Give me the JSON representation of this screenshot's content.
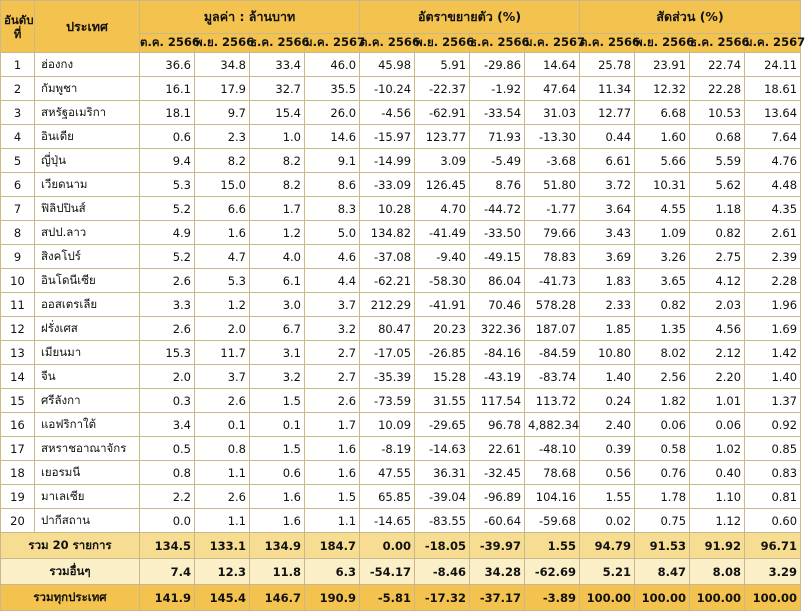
{
  "headers": {
    "rank": "อันดับที่",
    "country": "ประเทศ",
    "groups": [
      "มูลค่า : ล้านบาท",
      "อัตราขยายตัว (%)",
      "สัดส่วน (%)"
    ],
    "months": [
      "ต.ค. 2566",
      "พ.ย. 2566",
      "ธ.ค. 2566",
      "ม.ค. 2567"
    ]
  },
  "rows": [
    {
      "rank": "1",
      "country": "ฮ่องกง",
      "value": [
        "36.6",
        "34.8",
        "33.4",
        "46.0"
      ],
      "growth": [
        "45.98",
        "5.91",
        "-29.86",
        "14.64"
      ],
      "share": [
        "25.78",
        "23.91",
        "22.74",
        "24.11"
      ]
    },
    {
      "rank": "2",
      "country": "กัมพูชา",
      "value": [
        "16.1",
        "17.9",
        "32.7",
        "35.5"
      ],
      "growth": [
        "-10.24",
        "-22.37",
        "-1.92",
        "47.64"
      ],
      "share": [
        "11.34",
        "12.32",
        "22.28",
        "18.61"
      ]
    },
    {
      "rank": "3",
      "country": "สหรัฐอเมริกา",
      "value": [
        "18.1",
        "9.7",
        "15.4",
        "26.0"
      ],
      "growth": [
        "-4.56",
        "-62.91",
        "-33.54",
        "31.03"
      ],
      "share": [
        "12.77",
        "6.68",
        "10.53",
        "13.64"
      ]
    },
    {
      "rank": "4",
      "country": "อินเดีย",
      "value": [
        "0.6",
        "2.3",
        "1.0",
        "14.6"
      ],
      "growth": [
        "-15.97",
        "123.77",
        "71.93",
        "-13.30"
      ],
      "share": [
        "0.44",
        "1.60",
        "0.68",
        "7.64"
      ]
    },
    {
      "rank": "5",
      "country": "ญี่ปุ่น",
      "value": [
        "9.4",
        "8.2",
        "8.2",
        "9.1"
      ],
      "growth": [
        "-14.99",
        "3.09",
        "-5.49",
        "-3.68"
      ],
      "share": [
        "6.61",
        "5.66",
        "5.59",
        "4.76"
      ]
    },
    {
      "rank": "6",
      "country": "เวียดนาม",
      "value": [
        "5.3",
        "15.0",
        "8.2",
        "8.6"
      ],
      "growth": [
        "-33.09",
        "126.45",
        "8.76",
        "51.80"
      ],
      "share": [
        "3.72",
        "10.31",
        "5.62",
        "4.48"
      ]
    },
    {
      "rank": "7",
      "country": "ฟิลิปปินส์",
      "value": [
        "5.2",
        "6.6",
        "1.7",
        "8.3"
      ],
      "growth": [
        "10.28",
        "4.70",
        "-44.72",
        "-1.77"
      ],
      "share": [
        "3.64",
        "4.55",
        "1.18",
        "4.35"
      ]
    },
    {
      "rank": "8",
      "country": "สปป.ลาว",
      "value": [
        "4.9",
        "1.6",
        "1.2",
        "5.0"
      ],
      "growth": [
        "134.82",
        "-41.49",
        "-33.50",
        "79.66"
      ],
      "share": [
        "3.43",
        "1.09",
        "0.82",
        "2.61"
      ]
    },
    {
      "rank": "9",
      "country": "สิงคโปร์",
      "value": [
        "5.2",
        "4.7",
        "4.0",
        "4.6"
      ],
      "growth": [
        "-37.08",
        "-9.40",
        "-49.15",
        "78.83"
      ],
      "share": [
        "3.69",
        "3.26",
        "2.75",
        "2.39"
      ]
    },
    {
      "rank": "10",
      "country": "อินโดนีเซีย",
      "value": [
        "2.6",
        "5.3",
        "6.1",
        "4.4"
      ],
      "growth": [
        "-62.21",
        "-58.30",
        "86.04",
        "-41.73"
      ],
      "share": [
        "1.83",
        "3.65",
        "4.12",
        "2.28"
      ]
    },
    {
      "rank": "11",
      "country": "ออสเตรเลีย",
      "value": [
        "3.3",
        "1.2",
        "3.0",
        "3.7"
      ],
      "growth": [
        "212.29",
        "-41.91",
        "70.46",
        "578.28"
      ],
      "share": [
        "2.33",
        "0.82",
        "2.03",
        "1.96"
      ]
    },
    {
      "rank": "12",
      "country": "ฝรั่งเศส",
      "value": [
        "2.6",
        "2.0",
        "6.7",
        "3.2"
      ],
      "growth": [
        "80.47",
        "20.23",
        "322.36",
        "187.07"
      ],
      "share": [
        "1.85",
        "1.35",
        "4.56",
        "1.69"
      ]
    },
    {
      "rank": "13",
      "country": "เมียนมา",
      "value": [
        "15.3",
        "11.7",
        "3.1",
        "2.7"
      ],
      "growth": [
        "-17.05",
        "-26.85",
        "-84.16",
        "-84.59"
      ],
      "share": [
        "10.80",
        "8.02",
        "2.12",
        "1.42"
      ]
    },
    {
      "rank": "14",
      "country": "จีน",
      "value": [
        "2.0",
        "3.7",
        "3.2",
        "2.7"
      ],
      "growth": [
        "-35.39",
        "15.28",
        "-43.19",
        "-83.74"
      ],
      "share": [
        "1.40",
        "2.56",
        "2.20",
        "1.40"
      ]
    },
    {
      "rank": "15",
      "country": "ศรีลังกา",
      "value": [
        "0.3",
        "2.6",
        "1.5",
        "2.6"
      ],
      "growth": [
        "-73.59",
        "31.55",
        "117.54",
        "113.72"
      ],
      "share": [
        "0.24",
        "1.82",
        "1.01",
        "1.37"
      ]
    },
    {
      "rank": "16",
      "country": "แอฟริกาใต้",
      "value": [
        "3.4",
        "0.1",
        "0.1",
        "1.7"
      ],
      "growth": [
        "10.09",
        "-29.65",
        "96.78",
        "4,882.34"
      ],
      "share": [
        "2.40",
        "0.06",
        "0.06",
        "0.92"
      ]
    },
    {
      "rank": "17",
      "country": "สหราชอาณาจักร",
      "value": [
        "0.5",
        "0.8",
        "1.5",
        "1.6"
      ],
      "growth": [
        "-8.19",
        "-14.63",
        "22.61",
        "-48.10"
      ],
      "share": [
        "0.39",
        "0.58",
        "1.02",
        "0.85"
      ]
    },
    {
      "rank": "18",
      "country": "เยอรมนี",
      "value": [
        "0.8",
        "1.1",
        "0.6",
        "1.6"
      ],
      "growth": [
        "47.55",
        "36.31",
        "-32.45",
        "78.68"
      ],
      "share": [
        "0.56",
        "0.76",
        "0.40",
        "0.83"
      ]
    },
    {
      "rank": "19",
      "country": "มาเลเซีย",
      "value": [
        "2.2",
        "2.6",
        "1.6",
        "1.5"
      ],
      "growth": [
        "65.85",
        "-39.04",
        "-96.89",
        "104.16"
      ],
      "share": [
        "1.55",
        "1.78",
        "1.10",
        "0.81"
      ]
    },
    {
      "rank": "20",
      "country": "ปากีสถาน",
      "value": [
        "0.0",
        "1.1",
        "1.6",
        "1.1"
      ],
      "growth": [
        "-14.65",
        "-83.55",
        "-60.64",
        "-59.68"
      ],
      "share": [
        "0.02",
        "0.75",
        "1.12",
        "0.60"
      ]
    }
  ],
  "summary": {
    "top20": {
      "label": "รวม 20 รายการ",
      "value": [
        "134.5",
        "133.1",
        "134.9",
        "184.7"
      ],
      "growth": [
        "0.00",
        "-18.05",
        "-39.97",
        "1.55"
      ],
      "share": [
        "94.79",
        "91.53",
        "91.92",
        "96.71"
      ]
    },
    "others": {
      "label": "รวมอื่นๆ",
      "value": [
        "7.4",
        "12.3",
        "11.8",
        "6.3"
      ],
      "growth": [
        "-54.17",
        "-8.46",
        "34.28",
        "-62.69"
      ],
      "share": [
        "5.21",
        "8.47",
        "8.08",
        "3.29"
      ]
    },
    "total": {
      "label": "รวมทุกประเทศ",
      "value": [
        "141.9",
        "145.4",
        "146.7",
        "190.9"
      ],
      "growth": [
        "-5.81",
        "-17.32",
        "-37.17",
        "-3.89"
      ],
      "share": [
        "100.00",
        "100.00",
        "100.00",
        "100.00"
      ]
    }
  }
}
